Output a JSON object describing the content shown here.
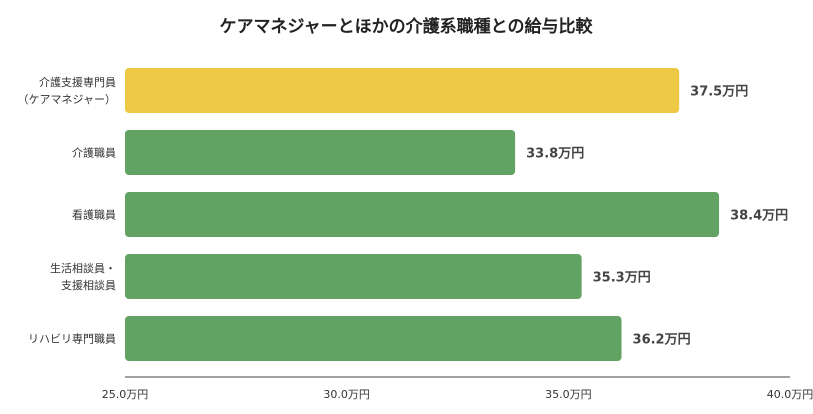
{
  "chart_data": {
    "type": "bar",
    "orientation": "horizontal",
    "title": "ケアマネジャーとほかの介護系職種との給与比較",
    "categories": [
      [
        "介護支援専門員",
        "（ケアマネジャー）"
      ],
      [
        "介護職員"
      ],
      [
        "看護職員"
      ],
      [
        "生活相談員・",
        "支援相談員"
      ],
      [
        "リハビリ専門職員"
      ]
    ],
    "values": [
      37.5,
      33.8,
      38.4,
      35.3,
      36.2
    ],
    "value_labels": [
      "37.5万円",
      "33.8万円",
      "38.4万円",
      "35.3万円",
      "36.2万円"
    ],
    "bar_colors": [
      "#EEC945",
      "#62A262",
      "#62A262",
      "#62A262",
      "#62A262"
    ],
    "xlim": [
      25.0,
      40.0
    ],
    "xticks": [
      25.0,
      30.0,
      35.0,
      40.0
    ],
    "xtick_labels": [
      "25.0万円",
      "30.0万円",
      "35.0万円",
      "40.0万円"
    ],
    "xlabel": "",
    "ylabel": "",
    "grid": false,
    "legend": "none"
  }
}
